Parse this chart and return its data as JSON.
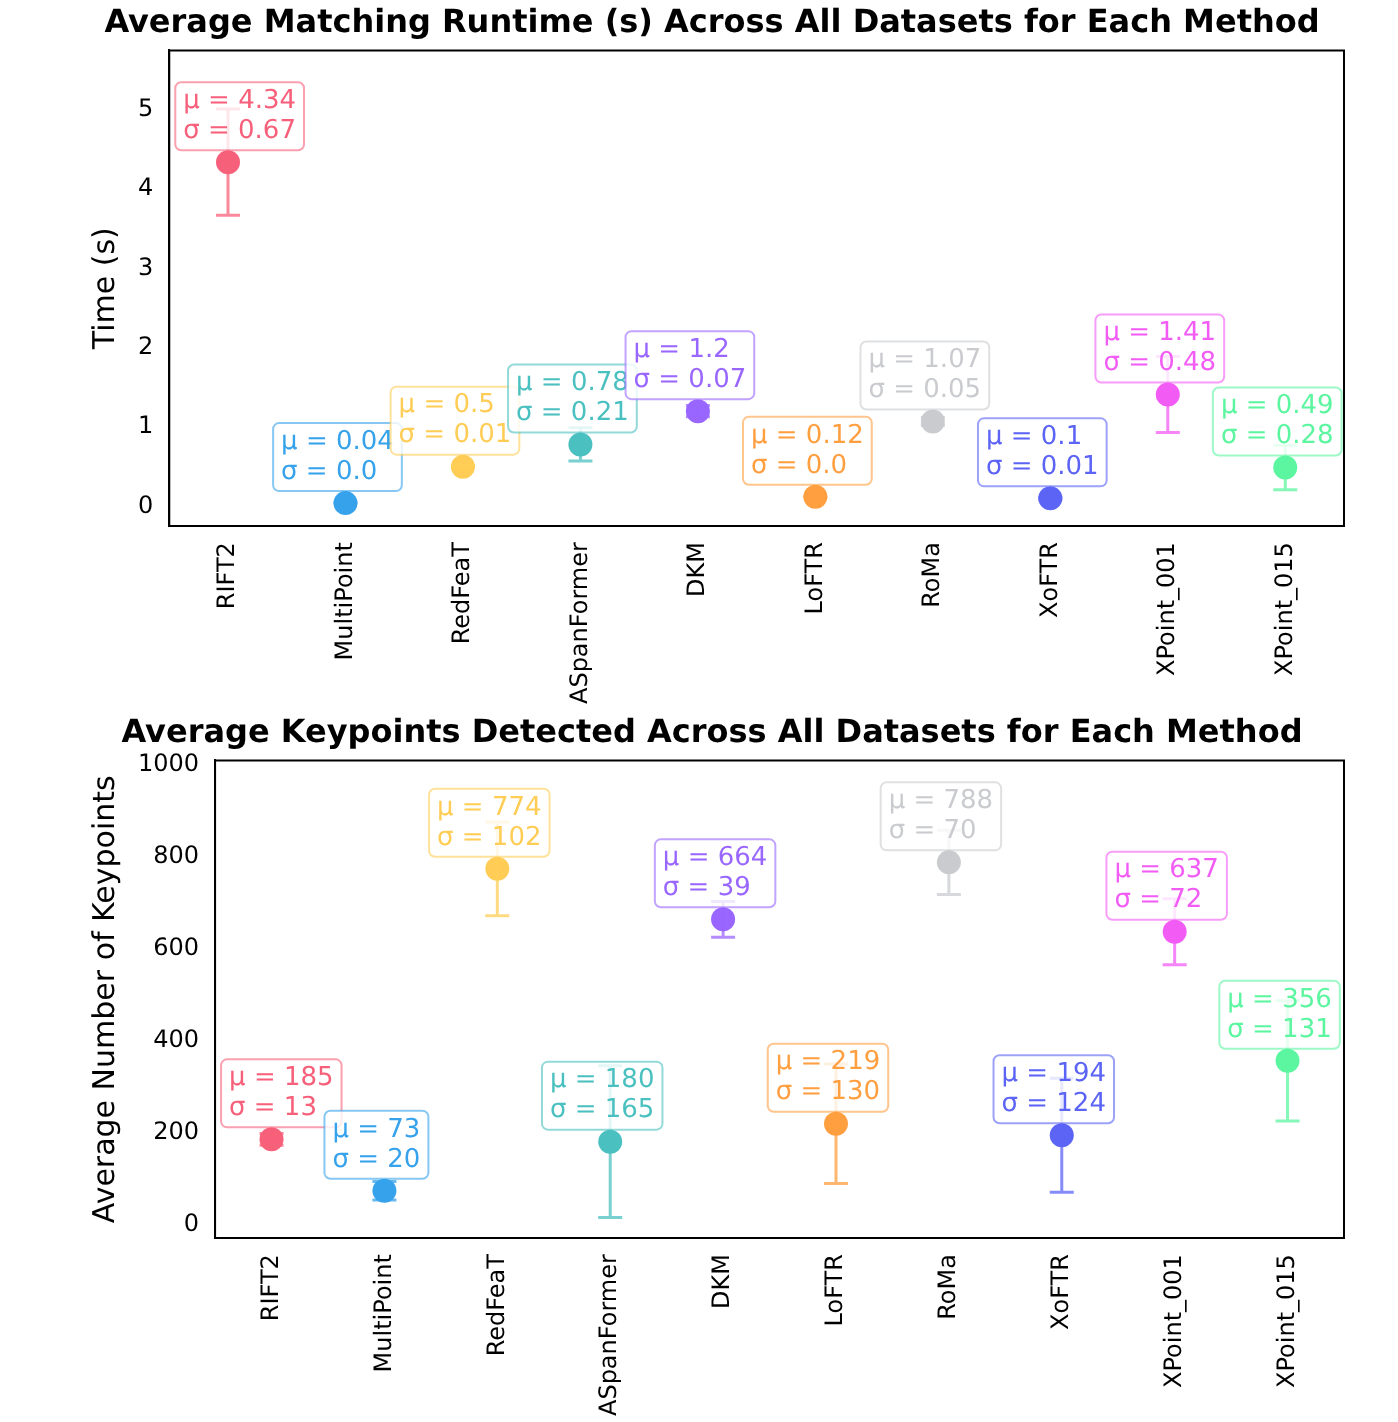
{
  "chart_data": [
    {
      "type": "scatter",
      "title": "Average Matching Runtime (s) Across All Datasets for Each Method",
      "ylabel": "Time (s)",
      "categories": [
        "RIFT2",
        "MultiPoint",
        "RedFeaT",
        "ASpanFormer",
        "DKM",
        "LoFTR",
        "RoMa",
        "XoFTR",
        "XPoint_001",
        "XPoint_015"
      ],
      "values": [
        4.34,
        0.04,
        0.5,
        0.78,
        1.2,
        0.12,
        1.07,
        0.1,
        1.41,
        0.49
      ],
      "errors": [
        0.67,
        0,
        0.01,
        0.21,
        0.07,
        0,
        0.05,
        0.01,
        0.48,
        0.28
      ],
      "colors": [
        "#f7607a",
        "#36a2eb",
        "#ffcd56",
        "#4bc0c0",
        "#9966ff",
        "#ff9f40",
        "#c9cbcf",
        "#5c64f5",
        "#f25cf5",
        "#5cf5a0"
      ],
      "value_labels": [
        "μ = 4.34\nσ = 0.67",
        "μ = 0.04\nσ = 0.0",
        "μ = 0.5\nσ = 0.01",
        "μ = 0.78\nσ = 0.21",
        "μ = 1.2\nσ = 0.07",
        "μ = 0.12\nσ = 0.0",
        "μ = 1.07\nσ = 0.05",
        "μ = 0.1\nσ = 0.01",
        "μ = 1.41\nσ = 0.48",
        "μ = 0.49\nσ = 0.28"
      ],
      "ylim": [
        -0.25,
        5.75
      ],
      "yticks": [
        0,
        1,
        2,
        3,
        4,
        5
      ],
      "marker": "circle"
    },
    {
      "type": "scatter",
      "title": "Average Keypoints Detected Across All Datasets for Each Method",
      "ylabel": "Average Number of Keypoints",
      "categories": [
        "RIFT2",
        "MultiPoint",
        "RedFeaT",
        "ASpanFormer",
        "DKM",
        "LoFTR",
        "RoMa",
        "XoFTR",
        "XPoint_001",
        "XPoint_015"
      ],
      "values": [
        185,
        73,
        774,
        180,
        664,
        219,
        788,
        194,
        637,
        356
      ],
      "errors": [
        13,
        20,
        102,
        165,
        39,
        130,
        70,
        124,
        72,
        131
      ],
      "colors": [
        "#f7607a",
        "#36a2eb",
        "#ffcd56",
        "#4bc0c0",
        "#9966ff",
        "#ff9f40",
        "#c9cbcf",
        "#5c64f5",
        "#f25cf5",
        "#5cf5a0"
      ],
      "value_labels": [
        "μ = 185\nσ = 13",
        "μ = 73\nσ = 20",
        "μ = 774\nσ = 102",
        "μ = 180\nσ = 165",
        "μ = 664\nσ = 39",
        "μ = 219\nσ = 130",
        "μ = 788\nσ = 70",
        "μ = 194\nσ = 124",
        "μ = 637\nσ = 72",
        "μ = 356\nσ = 131"
      ],
      "ylim": [
        -30,
        1010
      ],
      "yticks": [
        0,
        200,
        400,
        600,
        800,
        1000
      ],
      "marker": "circle"
    }
  ]
}
